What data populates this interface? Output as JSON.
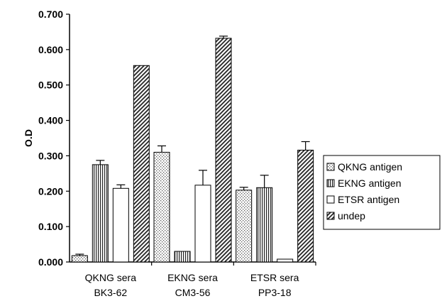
{
  "chart_data": {
    "type": "bar",
    "title": "",
    "xlabel": "",
    "ylabel": "O.D",
    "ylim": [
      0,
      0.7
    ],
    "yticks": [
      "0.000",
      "0.100",
      "0.200",
      "0.300",
      "0.400",
      "0.500",
      "0.600",
      "0.700"
    ],
    "categories": [
      [
        "QKNG sera",
        "BK3-62"
      ],
      [
        "EKNG sera",
        "CM3-56"
      ],
      [
        "ETSR sera",
        "PP3-18"
      ]
    ],
    "series": [
      {
        "name": "QKNG antigen",
        "pattern": "dots",
        "values": [
          0.018,
          0.31,
          0.203
        ],
        "errors": [
          0.004,
          0.018,
          0.008
        ]
      },
      {
        "name": "EKNG antigen",
        "pattern": "vertical",
        "values": [
          0.275,
          0.03,
          0.21
        ],
        "errors": [
          0.012,
          0.0,
          0.035
        ]
      },
      {
        "name": "ETSR antigen",
        "pattern": "none",
        "values": [
          0.208,
          0.217,
          0.008
        ],
        "errors": [
          0.01,
          0.042,
          0.0
        ]
      },
      {
        "name": "undep",
        "pattern": "diagonal",
        "values": [
          0.555,
          0.632,
          0.316
        ],
        "errors": [
          0.0,
          0.006,
          0.024
        ]
      }
    ],
    "grid": false,
    "legend": "right"
  }
}
